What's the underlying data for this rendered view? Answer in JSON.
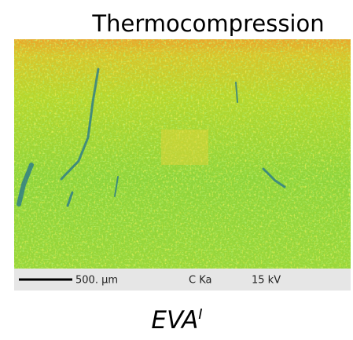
{
  "header": {
    "title": "Thermocompression"
  },
  "image": {
    "scale_bar": "500. µm",
    "signal": "C Ka",
    "voltage": "15 kV"
  },
  "caption": {
    "text": "EVA",
    "superscript": "I"
  }
}
